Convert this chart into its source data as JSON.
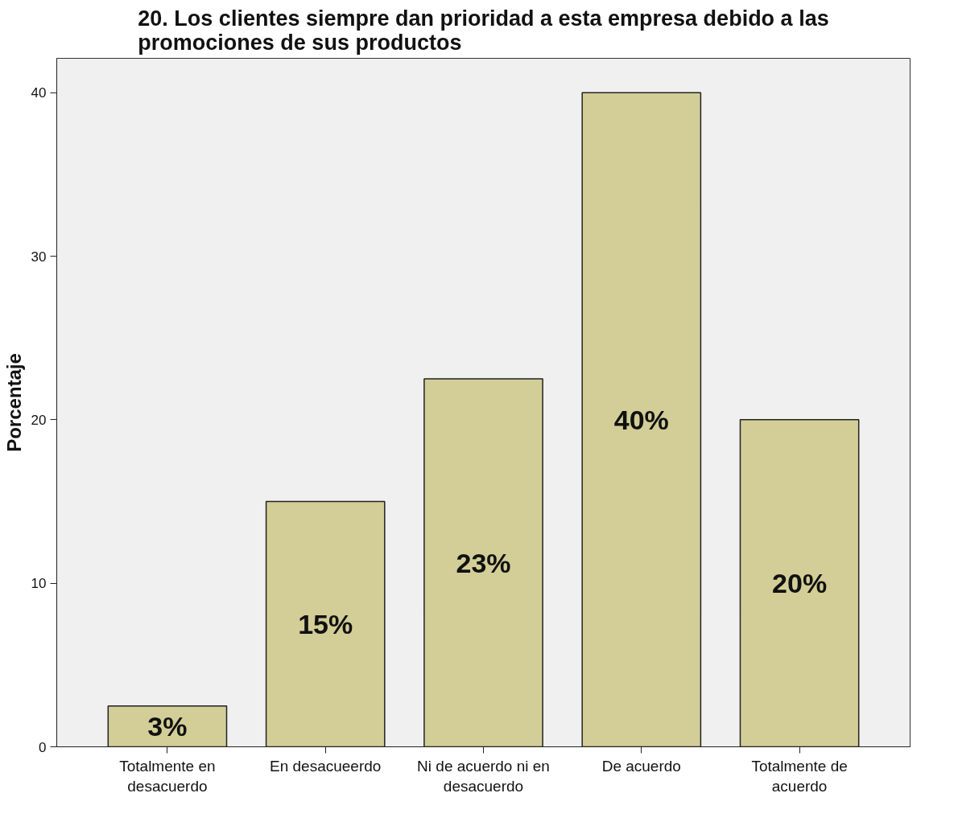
{
  "chart_data": {
    "type": "bar",
    "title": "20. Los clientes siempre dan prioridad a esta empresa debido a las promociones de sus productos",
    "ylabel": "Porcentaje",
    "categories": [
      "Totalmente en desacuerdo",
      "En desacueerdo",
      "Ni de acuerdo ni en desacuerdo",
      "De acuerdo",
      "Totalmente de acuerdo"
    ],
    "values": [
      2.5,
      15,
      22.5,
      40,
      20
    ],
    "value_labels": [
      "3%",
      "15%",
      "23%",
      "40%",
      "20%"
    ],
    "color": "#d3ce97",
    "ylim": [
      0,
      42.1
    ],
    "yticks": [
      0,
      10,
      20,
      30,
      40
    ],
    "grid": false
  }
}
